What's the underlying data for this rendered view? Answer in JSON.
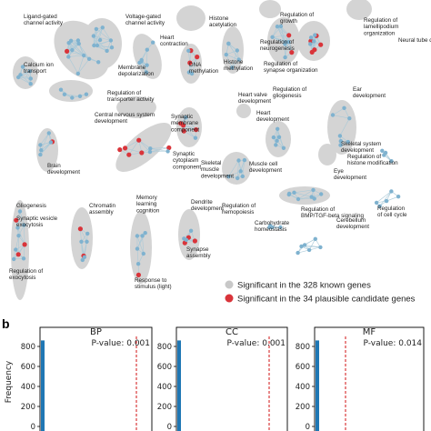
{
  "figure": {
    "panel_b_letter": "b",
    "legend": [
      {
        "label": "Significant in the 328 known genes",
        "color": "#c8c8c8"
      },
      {
        "label": "Significant in the 34 plausible candidate genes",
        "color": "#d9343a"
      }
    ],
    "colors": {
      "cluster_fill": "#d4d4d4",
      "node_blue": "#7fb2cf",
      "node_red": "#d9343a",
      "edge": "#a9c9d8",
      "bar": "#1f77b4",
      "pline": "#d62728"
    }
  },
  "network_labels": [
    "Ligand-gated\nchannel activity",
    "Voltage-gated\nchannel activity",
    "Heart\ncontraction",
    "Histone\nacetylation",
    "Regulation of\ngrowth",
    "Regulation of\nlamellipodium\norganization",
    "Neural tube development",
    "Calcium ion\ntransport",
    "Membrane\ndepolarization",
    "DNA\nmethylation",
    "Histone\nmethylation",
    "Regulation of\nneurogenesis",
    "Regulation of\nsynapse organization",
    "Regulation of\ntransporter activity",
    "Regulation of\ngliogenesis",
    "Heart valve\ndevelopment",
    "Ear\ndevelopment",
    "Central nervous system\ndevelopment",
    "Synaptic\nmembrane\ncomponent",
    "Heart\ndevelopment",
    "Skeletal system\ndevelopment",
    "Regulation of\nhistone modification",
    "Brain\ndevelopment",
    "Synaptic\ncytoplasm\ncomponent",
    "Skeletal\nmuscle\ndevelopment",
    "Muscle cell\ndevelopment",
    "Eye\ndevelopment",
    "Gliogenesis",
    "Synaptic vesicle\nexocytosis",
    "Chromatin\nassembly",
    "Memory\nlearning\ncognition",
    "Dendrite\ndevelopment",
    "Regulation of\nhemopoiesis",
    "Regulation of\nBMP/TGF-beta signaling",
    "Regulation\nof cell cycle",
    "Carbohydrate\nhomeostasis",
    "Cerebellum\ndevelopment",
    "Synapse\nassembly",
    "Regulation of\nexocytosis",
    "Response to\nstimulus (light)"
  ],
  "chart_data": [
    {
      "type": "bar",
      "title": "BP",
      "annotation": "P-value: 0.001",
      "pvalue": 0.001,
      "ylabel": "Frequency",
      "yticks": [
        "800",
        "600",
        "400",
        "200",
        "0"
      ],
      "ylim": [
        0,
        900
      ],
      "values": [
        860
      ],
      "observed_line": "red dashed vertical line near right edge"
    },
    {
      "type": "bar",
      "title": "CC",
      "annotation": "P-value: 0.001",
      "pvalue": 0.001,
      "yticks": [
        "800",
        "600",
        "400",
        "200",
        "0"
      ],
      "ylim": [
        0,
        900
      ],
      "values": [
        860
      ],
      "observed_line": "red dashed vertical line near right edge"
    },
    {
      "type": "bar",
      "title": "MF",
      "annotation": "P-value: 0.014",
      "pvalue": 0.014,
      "yticks": [
        "800",
        "600",
        "400",
        "200",
        "0"
      ],
      "ylim": [
        0,
        900
      ],
      "values": [
        860
      ],
      "observed_line": "red dashed vertical line near middle"
    }
  ]
}
